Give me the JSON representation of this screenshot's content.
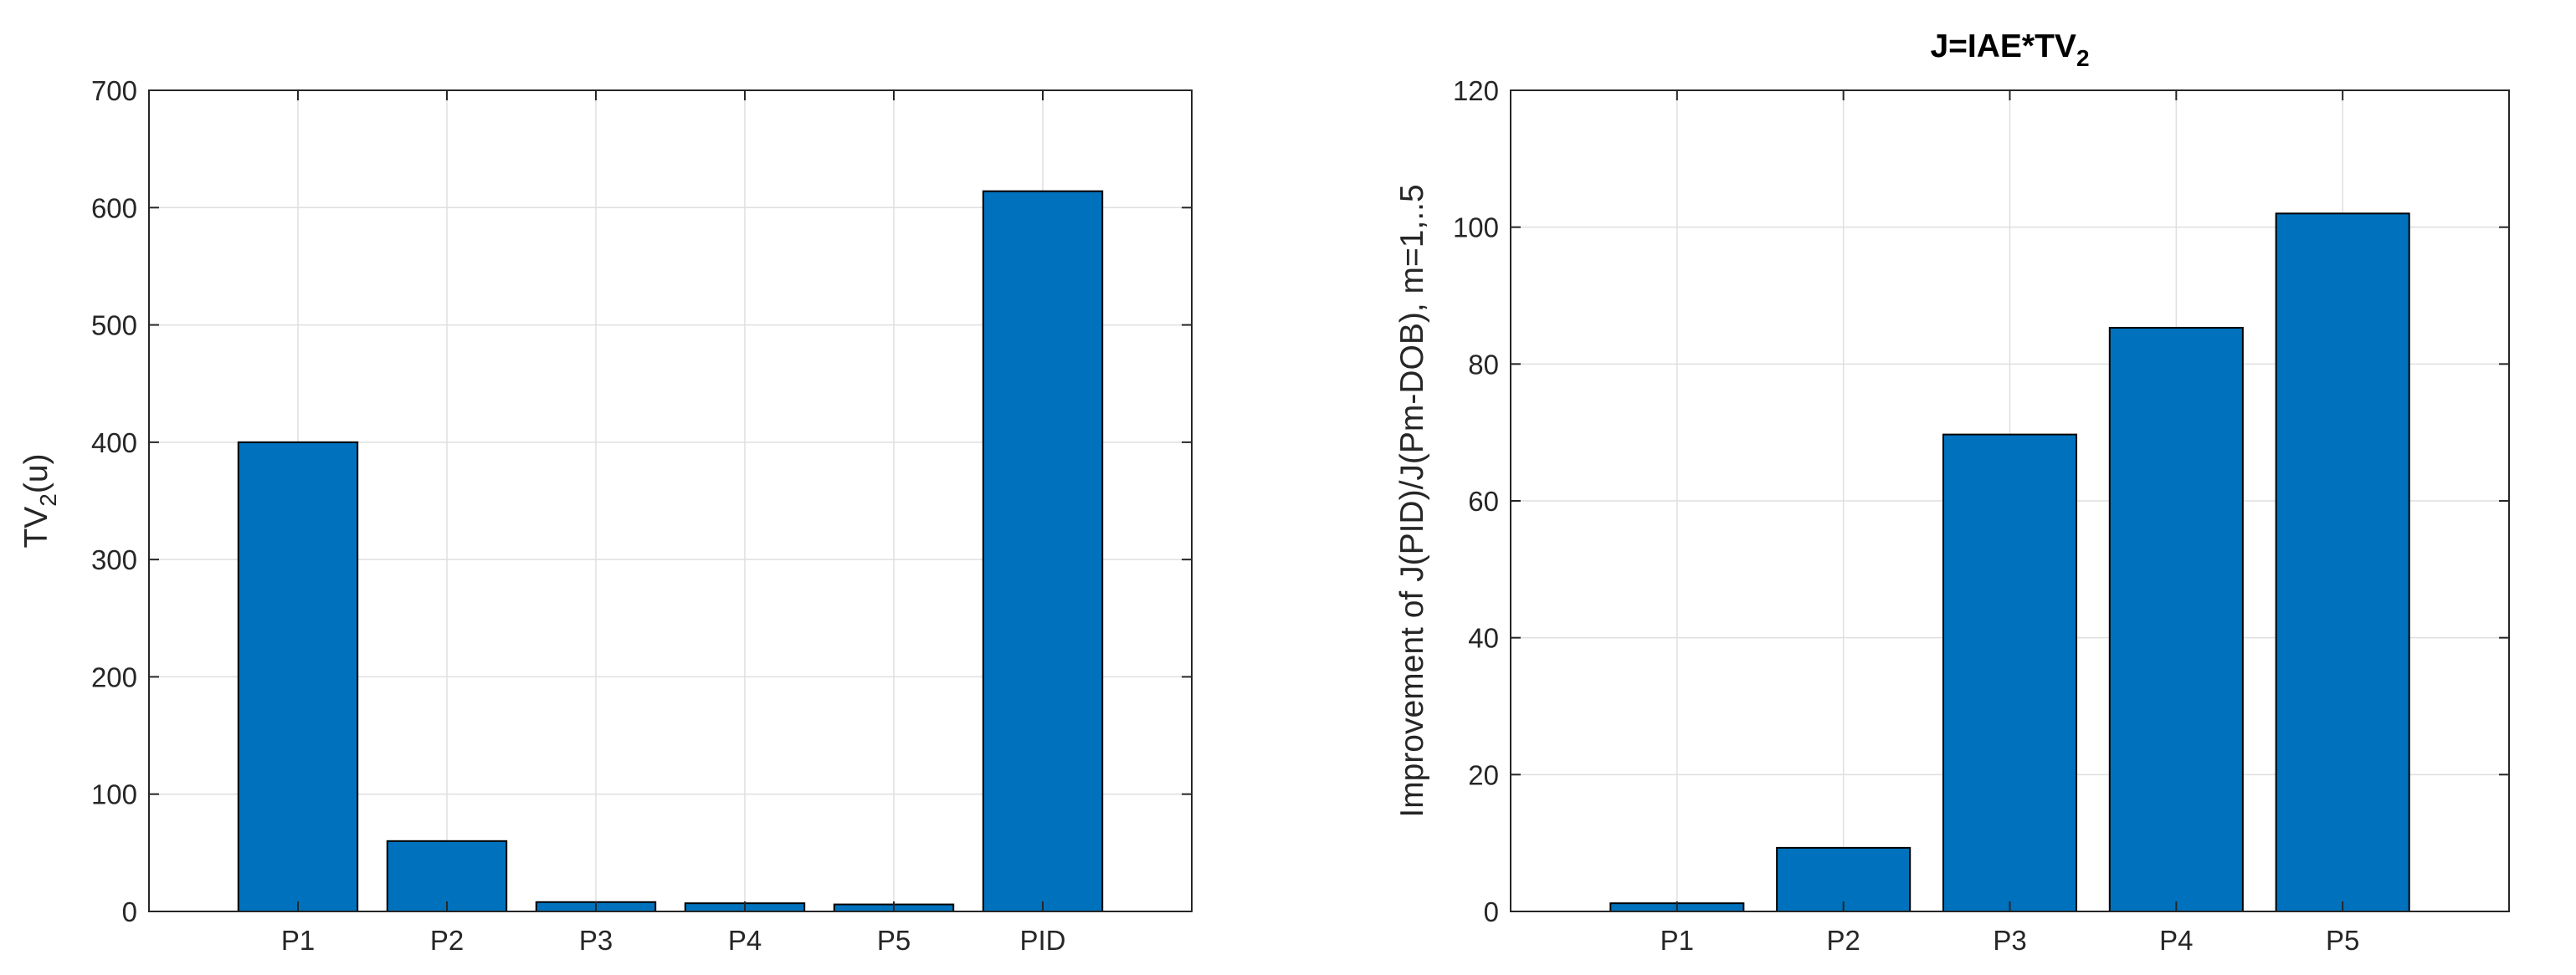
{
  "chart_data": [
    {
      "type": "bar",
      "title": "",
      "xlabel": "",
      "ylabel": {
        "base": "TV",
        "sub": "2",
        "rest": "(u)"
      },
      "categories": [
        "P1",
        "P2",
        "P3",
        "P4",
        "P5",
        "PID"
      ],
      "values": [
        400,
        60,
        8,
        7,
        6,
        614
      ],
      "ylim": [
        0,
        700
      ],
      "yticks": [
        0,
        100,
        200,
        300,
        400,
        500,
        600,
        700
      ],
      "grid": true,
      "bar_color": "#0072BD",
      "edge_color": "#000000"
    },
    {
      "type": "bar",
      "title": {
        "base": "J=IAE*TV",
        "sub": "2"
      },
      "xlabel": "",
      "ylabel": {
        "base": "Improvement of J(PID)/J(Pm-DOB), m=1,..5",
        "sub": "",
        "rest": ""
      },
      "categories": [
        "P1",
        "P2",
        "P3",
        "P4",
        "P5"
      ],
      "values": [
        1.2,
        9.3,
        69.7,
        85.3,
        102
      ],
      "ylim": [
        0,
        120
      ],
      "yticks": [
        0,
        20,
        40,
        60,
        80,
        100,
        120
      ],
      "grid": true,
      "bar_color": "#0072BD",
      "edge_color": "#000000"
    }
  ]
}
